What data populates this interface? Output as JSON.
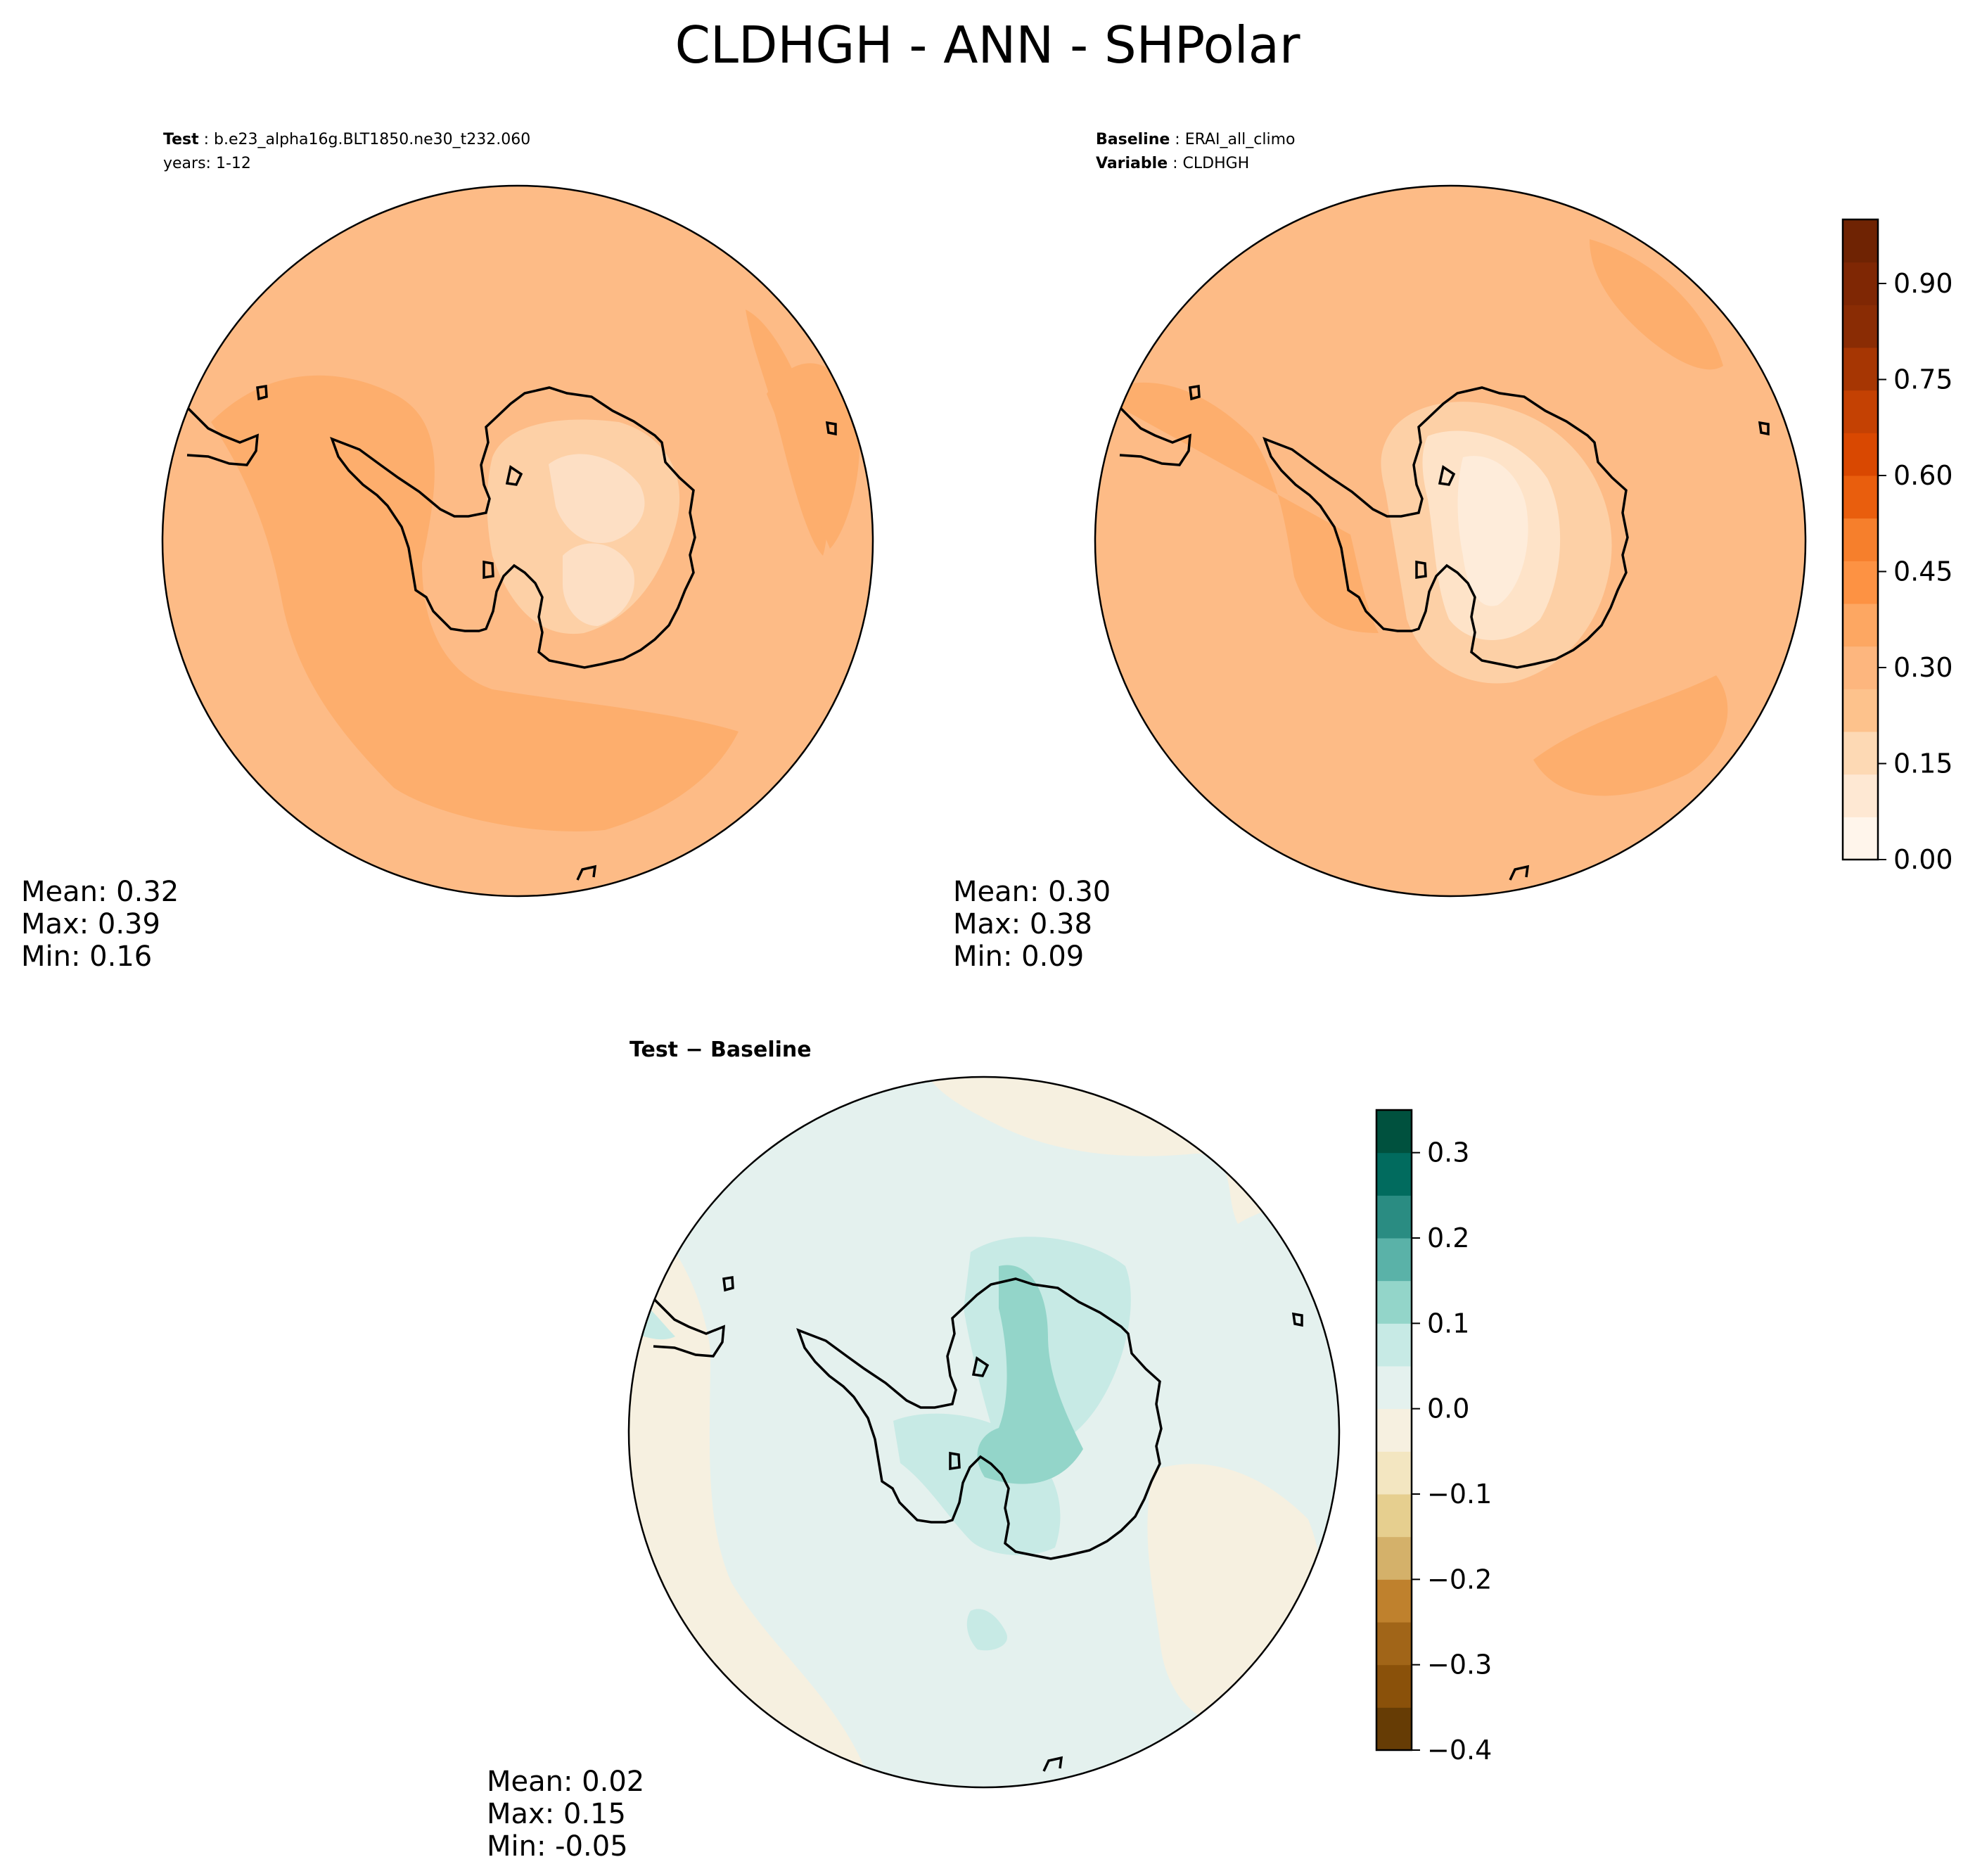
{
  "page": {
    "title": "CLDHGH - ANN - SHPolar"
  },
  "test_panel": {
    "label": "Test",
    "case": "b.e23_alpha16g.BLT1850.ne30_t232.060",
    "years": "years: 1-12",
    "stats": {
      "mean": "Mean:  0.32",
      "max": "Max:  0.39",
      "min": "Min:  0.16"
    }
  },
  "baseline_panel": {
    "label": "Baseline",
    "case": "ERAI_all_climo",
    "variable_label": "Variable",
    "variable": "CLDHGH",
    "stats": {
      "mean": "Mean:  0.30",
      "max": "Max:  0.38",
      "min": "Min:  0.09"
    }
  },
  "diff_panel": {
    "title": "Test − Baseline",
    "stats": {
      "mean": "Mean:  0.02",
      "max": "Max:  0.15",
      "min": "Min: -0.05"
    }
  },
  "colors": {
    "main_levels": [
      "#fff5eb",
      "#fee8d3",
      "#fdd9b4",
      "#fdc28c",
      "#fdb67e",
      "#fda762",
      "#fd9243",
      "#f67f2c",
      "#e95e0d",
      "#d94801",
      "#c44103",
      "#a63603",
      "#8a2c04",
      "#7f2704",
      "#6f2303"
    ],
    "diff_levels": [
      "#663c05",
      "#8a510a",
      "#a16518",
      "#bf812d",
      "#d4b16a",
      "#e6cf8f",
      "#f3e6c1",
      "#f6f0e0",
      "#e4f1ee",
      "#c7eae5",
      "#93d5c9",
      "#5ab2a8",
      "#2a8c82",
      "#016b5e",
      "#00513e"
    ],
    "outline": "#000000"
  },
  "chart_data": [
    {
      "type": "contour",
      "panel": "test",
      "variable": "CLDHGH",
      "region": "SHPolar",
      "mean": 0.32,
      "max": 0.39,
      "min": 0.16
    },
    {
      "type": "contour",
      "panel": "baseline",
      "variable": "CLDHGH",
      "region": "SHPolar",
      "mean": 0.3,
      "max": 0.38,
      "min": 0.09
    },
    {
      "type": "contour",
      "panel": "difference",
      "variable": "CLDHGH",
      "region": "SHPolar",
      "mean": 0.02,
      "max": 0.15,
      "min": -0.05
    },
    {
      "type": "colorbar",
      "name": "main",
      "range": [
        0.0,
        1.0
      ],
      "ticks": [
        0.0,
        0.15,
        0.3,
        0.45,
        0.6,
        0.75,
        0.9
      ],
      "tick_labels": [
        "0.00",
        "0.15",
        "0.30",
        "0.45",
        "0.60",
        "0.75",
        "0.90"
      ]
    },
    {
      "type": "colorbar",
      "name": "diff",
      "range": [
        -0.4,
        0.35
      ],
      "ticks": [
        -0.4,
        -0.3,
        -0.2,
        -0.1,
        0.0,
        0.1,
        0.2,
        0.3
      ],
      "tick_labels": [
        "−0.4",
        "−0.3",
        "−0.2",
        "−0.1",
        "0.0",
        "0.1",
        "0.2",
        "0.3"
      ]
    }
  ]
}
